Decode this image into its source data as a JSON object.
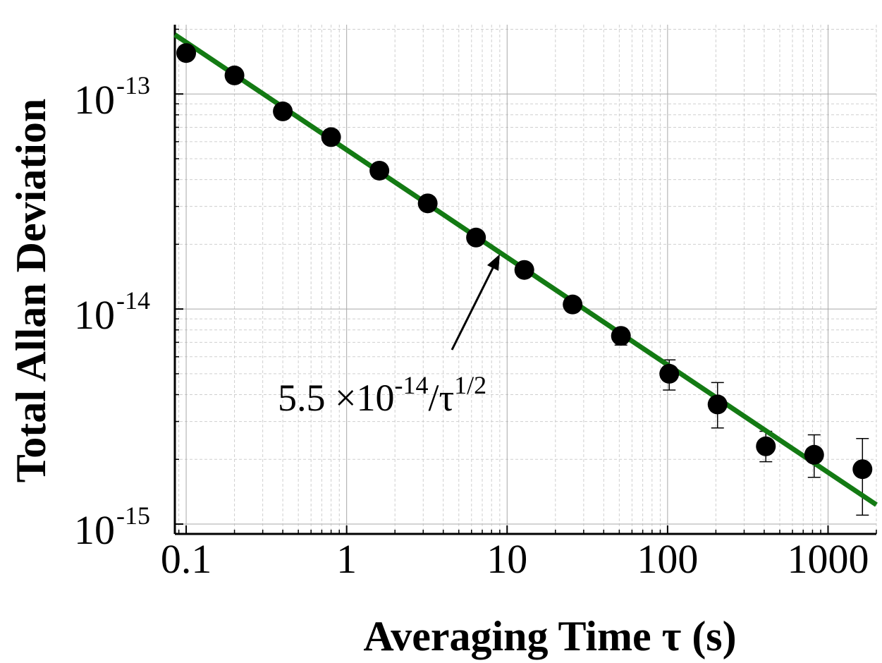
{
  "chart_data": {
    "type": "scatter",
    "xlabel": "Averaging Time τ (s)",
    "ylabel": "Total Allan Deviation",
    "xscale": "log",
    "yscale": "log",
    "xlim": [
      0.085,
      2000
    ],
    "ylim": [
      9e-16,
      2.1e-13
    ],
    "grid": true,
    "x_ticks": [
      {
        "value": 0.1,
        "label": "0.1"
      },
      {
        "value": 1,
        "label": "1"
      },
      {
        "value": 10,
        "label": "10"
      },
      {
        "value": 100,
        "label": "100"
      },
      {
        "value": 1000,
        "label": "1000"
      }
    ],
    "y_ticks": [
      {
        "value": 1e-13,
        "base": "10",
        "exp": "-13"
      },
      {
        "value": 1e-14,
        "base": "10",
        "exp": "-14"
      },
      {
        "value": 1e-15,
        "base": "10",
        "exp": "-15"
      }
    ],
    "series": [
      {
        "type": "scatter",
        "color": "#000000",
        "points": [
          {
            "x": 0.1,
            "y": 1.55e-13
          },
          {
            "x": 0.2,
            "y": 1.22e-13
          },
          {
            "x": 0.4,
            "y": 8.3e-14
          },
          {
            "x": 0.8,
            "y": 6.3e-14
          },
          {
            "x": 1.6,
            "y": 4.4e-14
          },
          {
            "x": 3.2,
            "y": 3.1e-14
          },
          {
            "x": 6.4,
            "y": 2.15e-14
          },
          {
            "x": 12.8,
            "y": 1.52e-14
          },
          {
            "x": 25.6,
            "y": 1.05e-14
          },
          {
            "x": 51.2,
            "y": 7.5e-15,
            "err_low": 6.8e-15,
            "err_high": 8.1e-15
          },
          {
            "x": 102.4,
            "y": 5e-15,
            "err_low": 4.2e-15,
            "err_high": 5.8e-15
          },
          {
            "x": 204.8,
            "y": 3.6e-15,
            "err_low": 2.8e-15,
            "err_high": 4.55e-15
          },
          {
            "x": 409.6,
            "y": 2.3e-15,
            "err_low": 1.95e-15,
            "err_high": 2.7e-15
          },
          {
            "x": 819.2,
            "y": 2.1e-15,
            "err_low": 1.65e-15,
            "err_high": 2.6e-15
          },
          {
            "x": 1638.4,
            "y": 1.8e-15,
            "err_low": 1.1e-15,
            "err_high": 2.5e-15
          }
        ]
      },
      {
        "type": "line",
        "color": "#137a13",
        "model": "a / sqrt(x)",
        "coefficient": 5.5e-14,
        "x_range": [
          0.085,
          2000
        ]
      }
    ],
    "annotations": [
      {
        "text_base": "5.5 ×10",
        "text_exp": "-14",
        "text_mid": "/τ",
        "text_exp2": "1/2",
        "arrow_to": {
          "x": 9,
          "y": 1.8e-14
        }
      }
    ]
  }
}
